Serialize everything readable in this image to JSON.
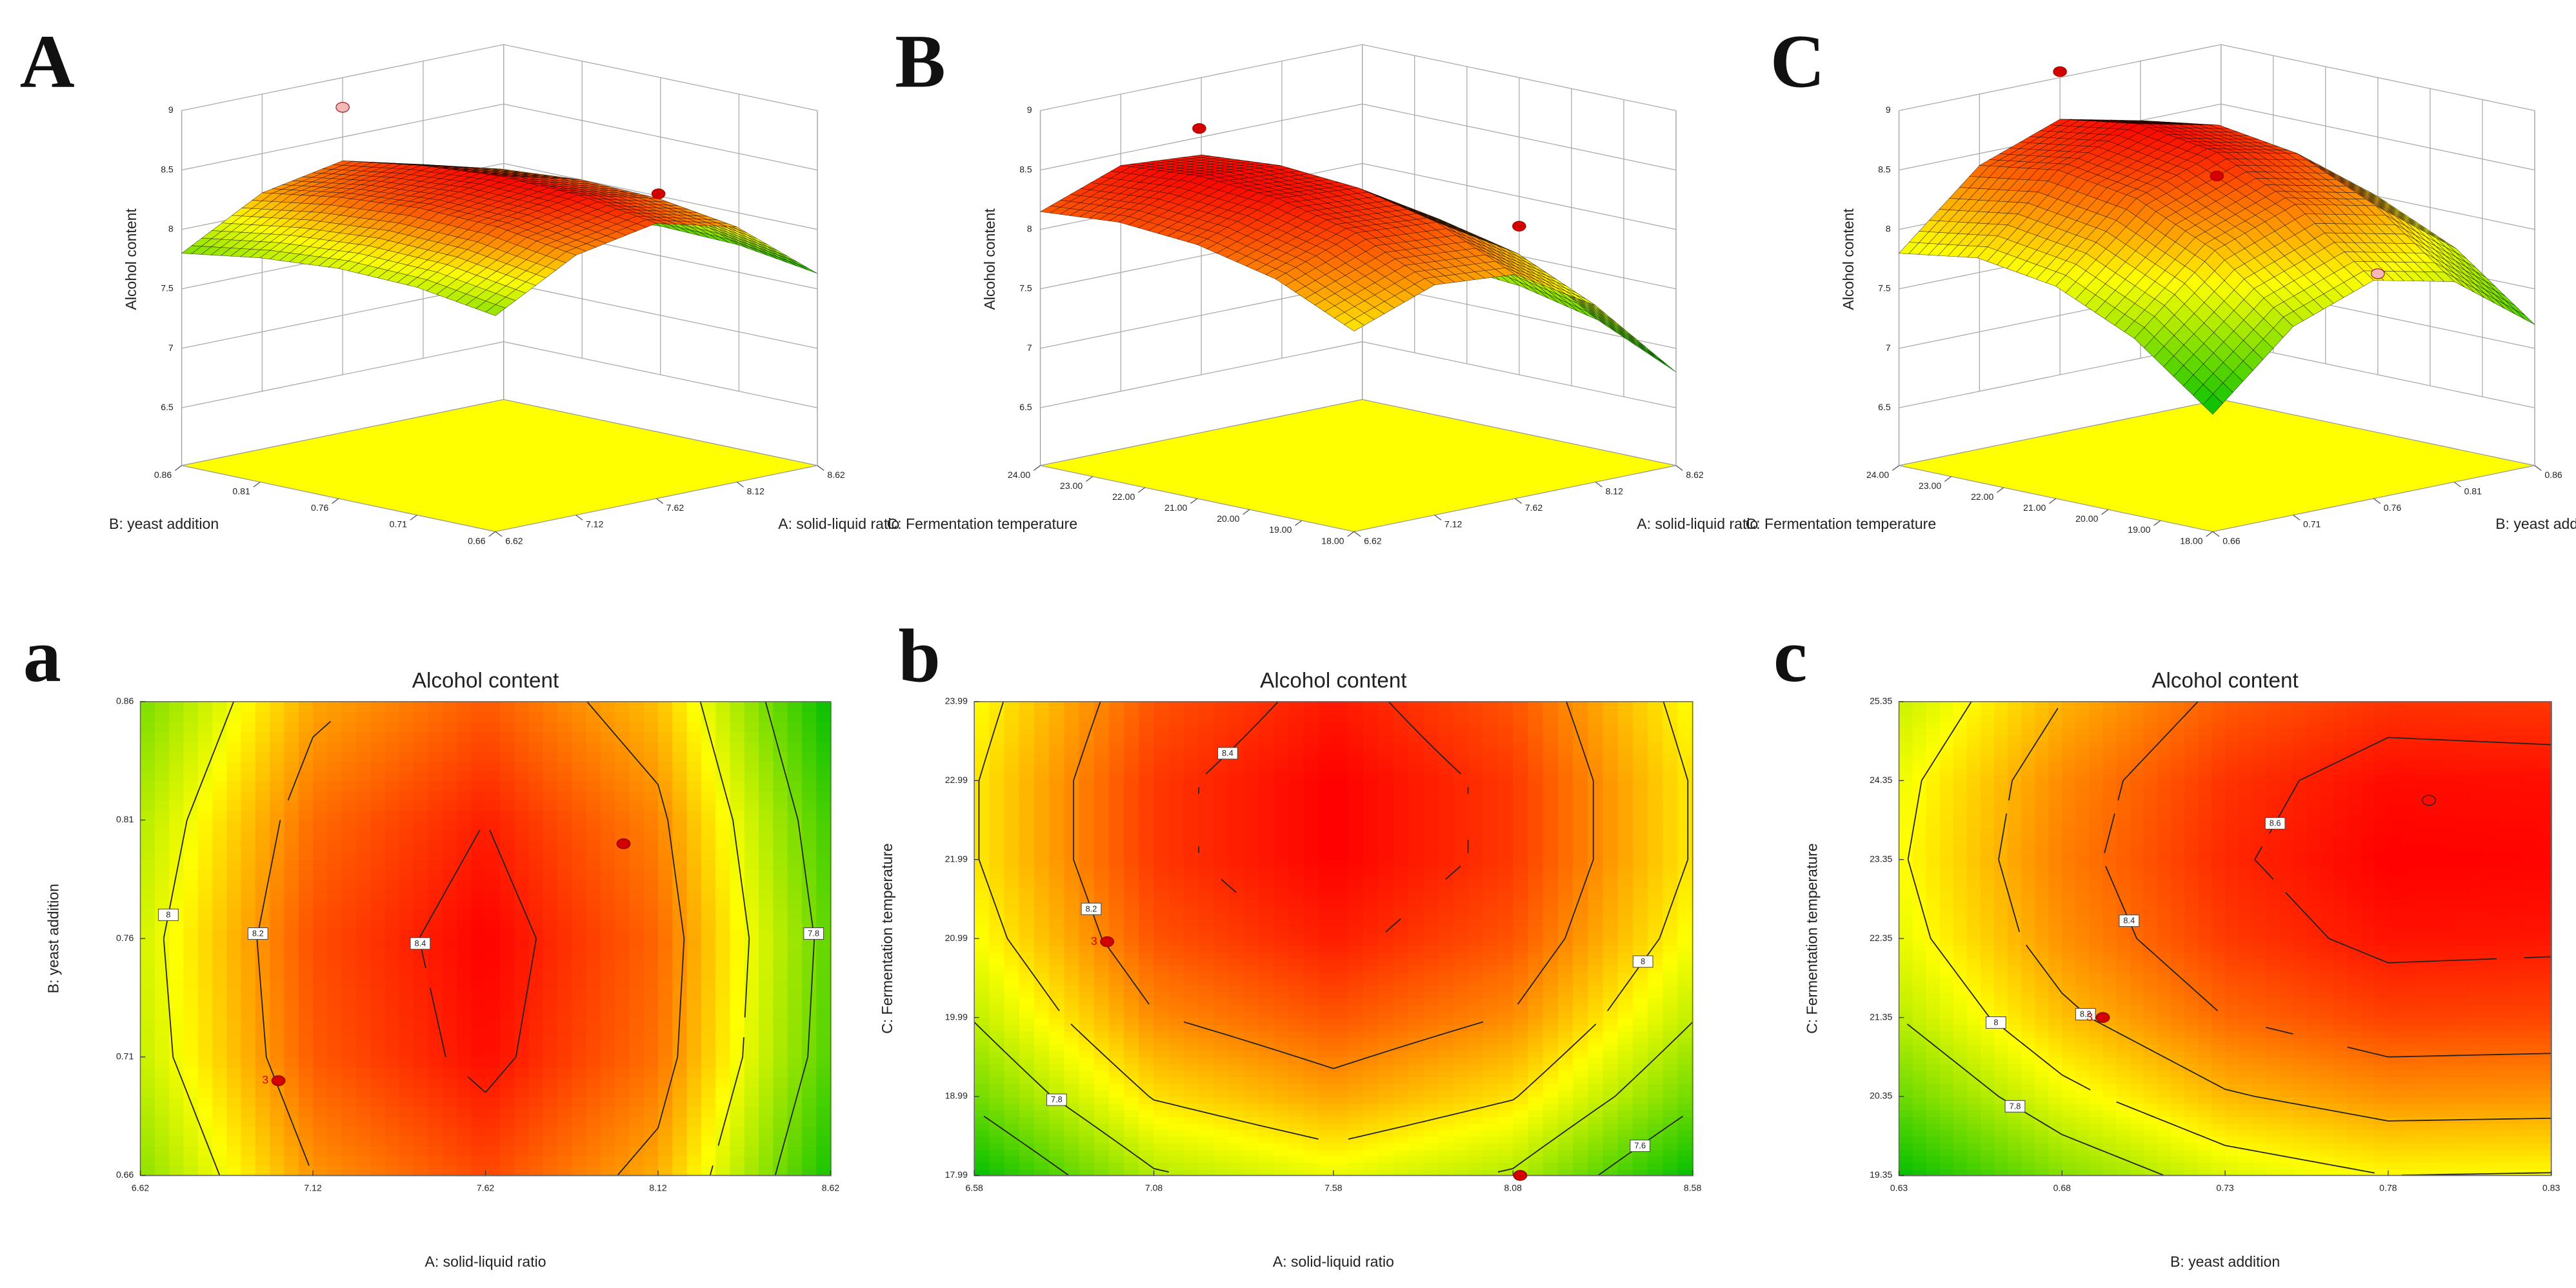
{
  "chart_data": [
    {
      "type": "surface3d",
      "panel": "A",
      "xlabel": "A: solid-liquid ratio",
      "ylabel": "B: yeast addition",
      "zlabel": "Alcohol content",
      "x": [
        6.62,
        7.12,
        7.62,
        8.12,
        8.62
      ],
      "y": [
        0.66,
        0.71,
        0.76,
        0.81,
        0.86
      ],
      "z": [
        [
          7.83,
          8.2,
          8.33,
          8.16,
          7.63
        ],
        [
          7.93,
          8.3,
          8.43,
          8.26,
          7.73
        ],
        [
          7.95,
          8.32,
          8.45,
          8.28,
          7.75
        ],
        [
          7.9,
          8.27,
          8.4,
          8.23,
          7.7
        ],
        [
          7.8,
          8.17,
          8.3,
          8.13,
          7.6
        ]
      ],
      "xlim": [
        6.62,
        8.62
      ],
      "ylim": [
        0.66,
        0.86
      ],
      "zlim": [
        6.5,
        9
      ],
      "xticks": [
        6.62,
        7.12,
        7.62,
        8.12,
        8.62
      ],
      "yticks": [
        0.66,
        0.71,
        0.76,
        0.81,
        0.86
      ],
      "zticks": [
        6.5,
        7,
        7.5,
        8,
        8.5,
        9
      ],
      "points": [
        {
          "x": 7.62,
          "y": 0.86,
          "z": 8.75,
          "color": "#f4b8b8"
        },
        {
          "x": 8.12,
          "y": 0.71,
          "z": 8.3,
          "color": "#d40000"
        }
      ]
    },
    {
      "type": "surface3d",
      "panel": "B",
      "xlabel": "A: solid-liquid ratio",
      "ylabel": "C: Fermentation temperature",
      "zlabel": "Alcohol content",
      "x": [
        6.62,
        7.12,
        7.62,
        8.12,
        8.62
      ],
      "y": [
        18,
        19.5,
        21,
        22.5,
        24
      ],
      "z": [
        [
          7.7,
          7.95,
          7.9,
          7.5,
          6.8
        ],
        [
          8.0,
          8.25,
          8.2,
          7.8,
          7.1
        ],
        [
          8.15,
          8.4,
          8.35,
          7.95,
          7.25
        ],
        [
          8.2,
          8.45,
          8.4,
          8.0,
          7.3
        ],
        [
          8.15,
          8.4,
          8.35,
          7.95,
          7.25
        ]
      ],
      "xlim": [
        6.62,
        8.62
      ],
      "ylim": [
        18,
        24
      ],
      "zlim": [
        6.5,
        9
      ],
      "xticks": [
        6.62,
        7.12,
        7.62,
        8.12,
        8.62
      ],
      "yticks": [
        {
          "value": 18,
          "label": "18.00"
        },
        {
          "value": 19,
          "label": "19.00"
        },
        {
          "value": 20,
          "label": "20.00"
        },
        {
          "value": 21,
          "label": "21.00"
        },
        {
          "value": 22,
          "label": "22.00"
        },
        {
          "value": 23,
          "label": "23.00"
        },
        {
          "value": 24,
          "label": "24.00"
        }
      ],
      "zticks": [
        6.5,
        7,
        7.5,
        8,
        8.5,
        9
      ],
      "points": [
        {
          "x": 7.12,
          "y": 22.5,
          "z": 8.85,
          "color": "#d40000"
        },
        {
          "x": 8.62,
          "y": 21,
          "z": 7.75,
          "color": "#d40000"
        }
      ]
    },
    {
      "type": "surface3d",
      "panel": "C",
      "xlabel": "B: yeast addition",
      "ylabel": "C: Fermentation temperature",
      "zlabel": "Alcohol content",
      "x": [
        0.66,
        0.71,
        0.76,
        0.81,
        0.86
      ],
      "y": [
        18,
        19.5,
        21,
        22.5,
        24
      ],
      "z": [
        [
          7.0,
          7.6,
          7.85,
          7.7,
          7.2
        ],
        [
          7.5,
          8.1,
          8.35,
          8.2,
          7.7
        ],
        [
          7.8,
          8.4,
          8.65,
          8.5,
          8.0
        ],
        [
          7.9,
          8.5,
          8.75,
          8.6,
          8.1
        ],
        [
          7.8,
          8.4,
          8.65,
          8.5,
          8.0
        ]
      ],
      "xlim": [
        0.66,
        0.86
      ],
      "ylim": [
        18,
        24
      ],
      "zlim": [
        6.5,
        9
      ],
      "xticks": [
        0.66,
        0.71,
        0.76,
        0.81,
        0.86
      ],
      "yticks": [
        {
          "value": 18,
          "label": "18.00"
        },
        {
          "value": 19,
          "label": "19.00"
        },
        {
          "value": 20,
          "label": "20.00"
        },
        {
          "value": 21,
          "label": "21.00"
        },
        {
          "value": 22,
          "label": "22.00"
        },
        {
          "value": 23,
          "label": "23.00"
        },
        {
          "value": 24,
          "label": "24.00"
        }
      ],
      "zticks": [
        6.5,
        7,
        7.5,
        8,
        8.5,
        9
      ],
      "points": [
        {
          "x": 0.76,
          "y": 24,
          "z": 9.05,
          "color": "#d40000"
        },
        {
          "x": 0.76,
          "y": 21,
          "z": 8.45,
          "color": "#d40000"
        },
        {
          "x": 0.86,
          "y": 21,
          "z": 7.35,
          "color": "#f4b8b8"
        }
      ]
    },
    {
      "type": "contour",
      "panel": "a",
      "title": "Alcohol content",
      "xlabel": "A: solid-liquid ratio",
      "ylabel": "B: yeast addition",
      "x": [
        6.62,
        7.12,
        7.62,
        8.12,
        8.62
      ],
      "y": [
        0.66,
        0.71,
        0.76,
        0.81,
        0.86
      ],
      "z": [
        [
          7.83,
          8.2,
          8.33,
          8.16,
          7.63
        ],
        [
          7.93,
          8.3,
          8.43,
          8.26,
          7.73
        ],
        [
          7.95,
          8.32,
          8.45,
          8.28,
          7.75
        ],
        [
          7.9,
          8.27,
          8.4,
          8.23,
          7.7
        ],
        [
          7.8,
          8.17,
          8.3,
          8.13,
          7.6
        ]
      ],
      "xlim": [
        6.62,
        8.62
      ],
      "ylim": [
        0.66,
        0.86
      ],
      "xticks": [
        6.62,
        7.12,
        7.62,
        8.12,
        8.62
      ],
      "yticks": [
        0.66,
        0.71,
        0.76,
        0.81,
        0.86
      ],
      "levels": [
        7.8,
        8,
        8.2,
        8.4
      ],
      "point_color": "#d40000",
      "points": [
        {
          "x": 7.02,
          "y": 0.7,
          "label": "3",
          "filled": true
        },
        {
          "x": 8.02,
          "y": 0.8,
          "filled": true
        }
      ]
    },
    {
      "type": "contour",
      "panel": "b",
      "title": "Alcohol content",
      "xlabel": "A: solid-liquid ratio",
      "ylabel": "C: Fermentation temperature",
      "x": [
        6.58,
        7.08,
        7.58,
        8.08,
        8.58
      ],
      "y": [
        17.99,
        18.99,
        19.99,
        20.99,
        21.99,
        22.99,
        23.99
      ],
      "z": [
        [
          7.4,
          7.78,
          7.9,
          7.78,
          7.4
        ],
        [
          7.64,
          8.01,
          8.14,
          8.01,
          7.64
        ],
        [
          7.81,
          8.19,
          8.31,
          8.19,
          7.81
        ],
        [
          7.93,
          8.31,
          8.43,
          8.31,
          7.93
        ],
        [
          7.99,
          8.37,
          8.49,
          8.37,
          7.99
        ],
        [
          7.99,
          8.37,
          8.49,
          8.37,
          7.99
        ],
        [
          7.94,
          8.31,
          8.44,
          8.31,
          7.94
        ]
      ],
      "xlim": [
        6.58,
        8.58
      ],
      "ylim": [
        17.99,
        23.99
      ],
      "xticks": [
        6.58,
        7.08,
        7.58,
        8.08,
        8.58
      ],
      "yticks": [
        17.99,
        18.99,
        19.99,
        20.99,
        21.99,
        22.99,
        23.99
      ],
      "levels": [
        7.6,
        7.8,
        8,
        8.2,
        8.4
      ],
      "point_color": "#d40000",
      "points": [
        {
          "x": 6.95,
          "y": 20.95,
          "label": "3",
          "filled": true
        },
        {
          "x": 8.1,
          "y": 17.99,
          "filled": true
        }
      ]
    },
    {
      "type": "contour",
      "panel": "c",
      "title": "Alcohol content",
      "xlabel": "B: yeast addition",
      "ylabel": "C: Fermentation temperature",
      "x": [
        0.63,
        0.68,
        0.73,
        0.78,
        0.83
      ],
      "y": [
        19.35,
        20.35,
        21.35,
        22.35,
        23.35,
        24.35,
        25.35
      ],
      "z": [
        [
          7.29,
          7.65,
          7.89,
          8.0,
          7.99
        ],
        [
          7.58,
          7.94,
          8.18,
          8.29,
          8.28
        ],
        [
          7.8,
          8.16,
          8.4,
          8.51,
          8.5
        ],
        [
          7.93,
          8.29,
          8.53,
          8.64,
          8.63
        ],
        [
          7.98,
          8.34,
          8.58,
          8.69,
          8.68
        ],
        [
          7.95,
          8.31,
          8.55,
          8.66,
          8.65
        ],
        [
          7.84,
          8.2,
          8.44,
          8.55,
          8.54
        ]
      ],
      "xlim": [
        0.63,
        0.83
      ],
      "ylim": [
        19.35,
        25.35
      ],
      "xticks": [
        0.63,
        0.68,
        0.73,
        0.78,
        0.83
      ],
      "yticks": [
        19.35,
        20.35,
        21.35,
        22.35,
        23.35,
        24.35,
        25.35
      ],
      "levels": [
        7.8,
        8,
        8.2,
        8.4,
        8.6
      ],
      "point_color": "#d40000",
      "points": [
        {
          "x": 0.6925,
          "y": 21.35,
          "label": "3",
          "filled": true
        },
        {
          "x": 0.7925,
          "y": 24.1,
          "filled": false
        }
      ]
    }
  ]
}
